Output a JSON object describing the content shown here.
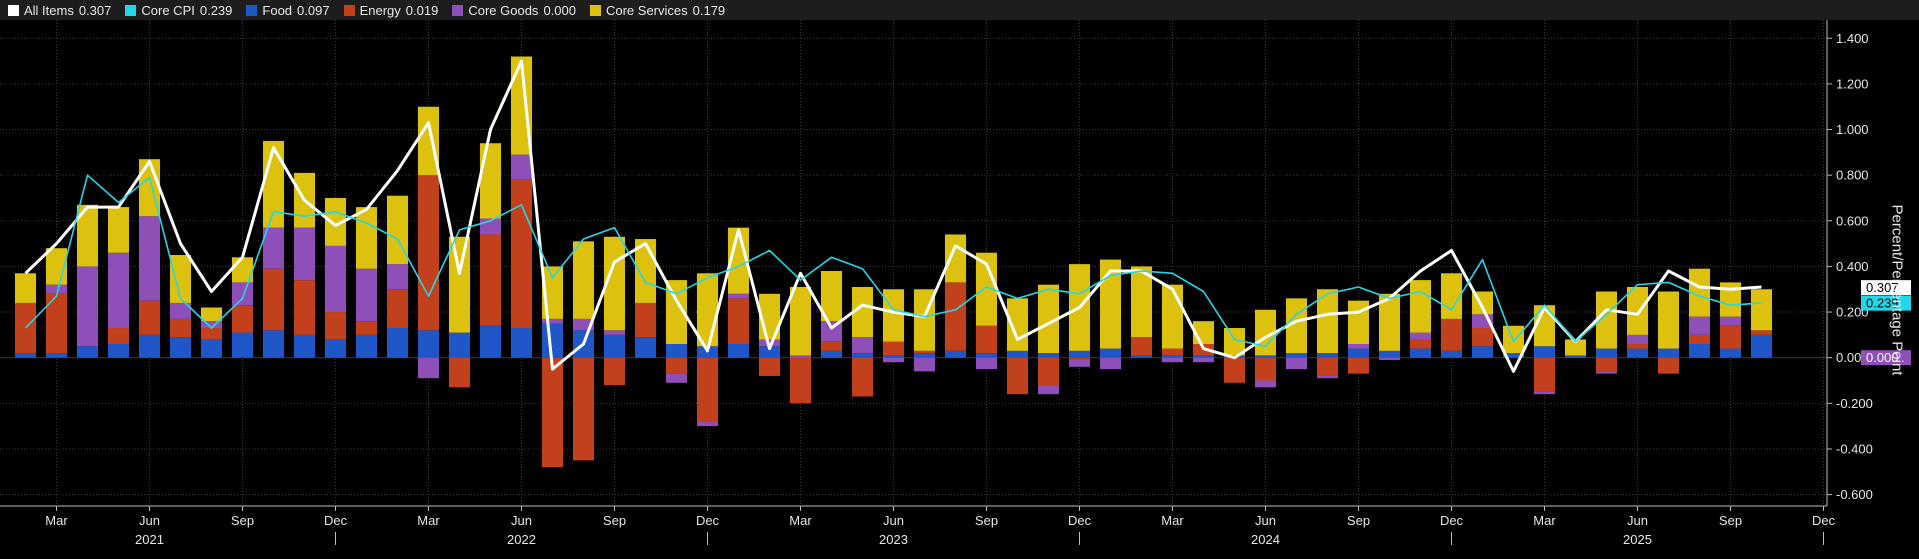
{
  "legend": [
    {
      "name": "All Items",
      "value": "0.307",
      "color": "#ffffff"
    },
    {
      "name": "Core CPI",
      "value": "0.239",
      "color": "#22d8e8"
    },
    {
      "name": "Food",
      "value": "0.097",
      "color": "#1f57c8"
    },
    {
      "name": "Energy",
      "value": "0.019",
      "color": "#c2401c"
    },
    {
      "name": "Core Goods",
      "value": "0.000",
      "color": "#8f4fb8"
    },
    {
      "name": "Core Services",
      "value": "0.179",
      "color": "#dcc20e"
    }
  ],
  "chart_data": {
    "type": "bar",
    "stacked": true,
    "x": [
      "2021-02",
      "2021-03",
      "2021-04",
      "2021-05",
      "2021-06",
      "2021-07",
      "2021-08",
      "2021-09",
      "2021-10",
      "2021-11",
      "2021-12",
      "2022-01",
      "2022-02",
      "2022-03",
      "2022-04",
      "2022-05",
      "2022-06",
      "2022-07",
      "2022-08",
      "2022-09",
      "2022-10",
      "2022-11",
      "2022-12",
      "2023-01",
      "2023-02",
      "2023-03",
      "2023-04",
      "2023-05",
      "2023-06",
      "2023-07",
      "2023-08",
      "2023-09",
      "2023-10",
      "2023-11",
      "2023-12",
      "2024-01",
      "2024-02",
      "2024-03",
      "2024-04",
      "2024-05",
      "2024-06",
      "2024-07",
      "2024-08",
      "2024-09",
      "2024-10",
      "2024-11",
      "2024-12",
      "2025-01",
      "2025-02",
      "2025-03",
      "2025-04",
      "2025-05",
      "2025-06",
      "2025-07",
      "2025-08",
      "2025-09",
      "2025-10"
    ],
    "bar_series": [
      {
        "name": "Food",
        "color": "#1f57c8",
        "values": [
          0.02,
          0.02,
          0.05,
          0.06,
          0.1,
          0.09,
          0.08,
          0.11,
          0.12,
          0.1,
          0.08,
          0.1,
          0.13,
          0.12,
          0.11,
          0.14,
          0.13,
          0.15,
          0.12,
          0.1,
          0.09,
          0.06,
          0.05,
          0.06,
          0.05,
          0.0,
          0.03,
          0.02,
          0.01,
          0.02,
          0.03,
          0.02,
          0.03,
          0.02,
          0.03,
          0.04,
          0.01,
          0.01,
          0.01,
          0.01,
          0.01,
          0.02,
          0.02,
          0.04,
          0.03,
          0.04,
          0.03,
          0.05,
          0.02,
          0.05,
          0.01,
          0.04,
          0.04,
          0.04,
          0.06,
          0.04,
          0.1
        ]
      },
      {
        "name": "Energy",
        "color": "#c2401c",
        "values": [
          0.22,
          0.26,
          0.0,
          0.07,
          0.15,
          0.08,
          0.05,
          0.12,
          0.27,
          0.24,
          0.12,
          0.06,
          0.17,
          0.68,
          -0.13,
          0.4,
          0.65,
          -0.48,
          -0.45,
          -0.12,
          0.15,
          -0.07,
          -0.28,
          0.2,
          -0.08,
          -0.2,
          0.04,
          -0.17,
          0.06,
          0.01,
          0.3,
          0.12,
          -0.16,
          -0.12,
          -0.01,
          0.0,
          0.08,
          0.03,
          0.05,
          -0.11,
          -0.1,
          0.0,
          -0.08,
          -0.07,
          0.0,
          0.04,
          0.14,
          0.08,
          0.0,
          -0.15,
          0.0,
          -0.06,
          0.02,
          -0.07,
          0.04,
          0.1,
          0.02
        ]
      },
      {
        "name": "Core Goods",
        "color": "#8f4fb8",
        "values": [
          0.0,
          0.04,
          0.35,
          0.33,
          0.37,
          0.07,
          0.03,
          0.1,
          0.18,
          0.23,
          0.29,
          0.23,
          0.11,
          -0.09,
          0.0,
          0.07,
          0.11,
          0.02,
          0.05,
          0.02,
          0.0,
          -0.04,
          -0.02,
          0.02,
          0.03,
          0.01,
          0.09,
          0.07,
          -0.02,
          -0.06,
          0.0,
          -0.05,
          0.0,
          -0.04,
          -0.03,
          -0.05,
          0.0,
          -0.02,
          -0.02,
          0.0,
          -0.03,
          -0.05,
          -0.01,
          0.02,
          -0.01,
          0.03,
          0.0,
          0.06,
          0.0,
          -0.01,
          0.0,
          -0.01,
          0.04,
          0.0,
          0.08,
          0.04,
          0.0
        ]
      },
      {
        "name": "Core Services",
        "color": "#dcc20e",
        "values": [
          0.13,
          0.16,
          0.27,
          0.2,
          0.25,
          0.21,
          0.06,
          0.11,
          0.38,
          0.24,
          0.21,
          0.27,
          0.3,
          0.3,
          0.42,
          0.33,
          0.43,
          0.23,
          0.34,
          0.41,
          0.28,
          0.28,
          0.32,
          0.29,
          0.2,
          0.3,
          0.22,
          0.22,
          0.23,
          0.27,
          0.21,
          0.32,
          0.23,
          0.3,
          0.38,
          0.39,
          0.31,
          0.28,
          0.1,
          0.12,
          0.2,
          0.24,
          0.28,
          0.19,
          0.25,
          0.23,
          0.2,
          0.1,
          0.12,
          0.18,
          0.07,
          0.25,
          0.21,
          0.25,
          0.21,
          0.15,
          0.18
        ]
      }
    ],
    "line_series": [
      {
        "name": "All Items",
        "color": "#ffffff",
        "values": [
          0.37,
          0.5,
          0.66,
          0.66,
          0.86,
          0.5,
          0.29,
          0.44,
          0.92,
          0.69,
          0.58,
          0.65,
          0.82,
          1.03,
          0.37,
          1.0,
          1.3,
          -0.05,
          0.06,
          0.42,
          0.5,
          0.25,
          0.03,
          0.56,
          0.04,
          0.37,
          0.13,
          0.23,
          0.2,
          0.18,
          0.49,
          0.41,
          0.08,
          0.15,
          0.22,
          0.38,
          0.38,
          0.3,
          0.04,
          0.0,
          0.09,
          0.16,
          0.19,
          0.2,
          0.26,
          0.38,
          0.47,
          0.22,
          -0.06,
          0.22,
          0.07,
          0.21,
          0.19,
          0.38,
          0.31,
          0.3,
          0.31
        ]
      },
      {
        "name": "Core CPI",
        "color": "#22d8e8",
        "values": [
          0.13,
          0.27,
          0.8,
          0.68,
          0.79,
          0.26,
          0.13,
          0.26,
          0.64,
          0.62,
          0.64,
          0.59,
          0.52,
          0.27,
          0.56,
          0.6,
          0.67,
          0.35,
          0.52,
          0.57,
          0.33,
          0.28,
          0.35,
          0.4,
          0.47,
          0.34,
          0.44,
          0.39,
          0.21,
          0.18,
          0.21,
          0.31,
          0.26,
          0.3,
          0.28,
          0.36,
          0.38,
          0.37,
          0.29,
          0.08,
          0.05,
          0.19,
          0.28,
          0.31,
          0.26,
          0.29,
          0.21,
          0.43,
          0.07,
          0.23,
          0.07,
          0.19,
          0.32,
          0.33,
          0.27,
          0.23,
          0.24
        ]
      }
    ],
    "y_ticks": [
      "1.400",
      "1.200",
      "1.000",
      "0.800",
      "0.600",
      "0.400",
      "0.200",
      "0.000",
      "-0.200",
      "-0.400",
      "-0.600"
    ],
    "ylim": [
      -0.65,
      1.48
    ],
    "ylabel": "Percent/Percentage Point",
    "x_month_labels": [
      {
        "index": 1,
        "label": "Mar"
      },
      {
        "index": 4,
        "label": "Jun"
      },
      {
        "index": 7,
        "label": "Sep"
      },
      {
        "index": 10,
        "label": "Dec"
      },
      {
        "index": 13,
        "label": "Mar"
      },
      {
        "index": 16,
        "label": "Jun"
      },
      {
        "index": 19,
        "label": "Sep"
      },
      {
        "index": 22,
        "label": "Dec"
      },
      {
        "index": 25,
        "label": "Mar"
      },
      {
        "index": 28,
        "label": "Jun"
      },
      {
        "index": 31,
        "label": "Sep"
      },
      {
        "index": 34,
        "label": "Dec"
      },
      {
        "index": 37,
        "label": "Mar"
      },
      {
        "index": 40,
        "label": "Jun"
      },
      {
        "index": 43,
        "label": "Sep"
      },
      {
        "index": 46,
        "label": "Dec"
      },
      {
        "index": 49,
        "label": "Mar"
      },
      {
        "index": 52,
        "label": "Jun"
      },
      {
        "index": 55,
        "label": "Sep"
      },
      {
        "index": 58,
        "label": "Dec"
      }
    ],
    "x_year_labels": [
      {
        "index": 4,
        "label": "2021"
      },
      {
        "index": 16,
        "label": "2022"
      },
      {
        "index": 28,
        "label": "2023"
      },
      {
        "index": 40,
        "label": "2024"
      },
      {
        "index": 52,
        "label": "2025"
      }
    ],
    "year_boundaries": [
      10,
      22,
      34,
      46,
      58
    ],
    "last_value_tags": [
      {
        "text": "0.307",
        "value": 0.307,
        "bg": "#ffffff",
        "fg": "#000000"
      },
      {
        "text": "0.239",
        "value": 0.239,
        "bg": "#22d8e8",
        "fg": "#000000"
      },
      {
        "text": "0.000",
        "value": 0.0,
        "bg": "#8f4fb8",
        "fg": "#ffffff"
      }
    ],
    "grid": true,
    "legend_position": "top"
  }
}
